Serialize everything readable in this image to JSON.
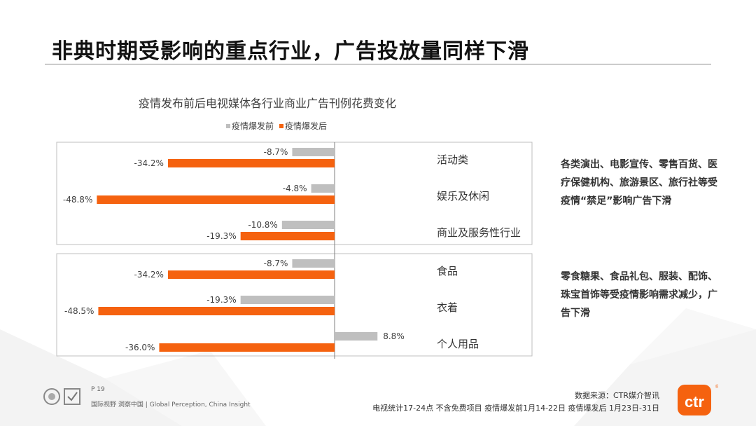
{
  "page_title": "非典时期受影响的重点行业，广告投放量同样下滑",
  "legend": {
    "before_label": "疫情爆发前",
    "after_label": "疫情爆发后"
  },
  "colors": {
    "before": "#bfbfbf",
    "after": "#f5620f",
    "accent": "#f5620f"
  },
  "chart_data": {
    "type": "bar",
    "orientation": "horizontal",
    "title": "疫情发布前后电视媒体各行业商业广告刊例花费变化",
    "categories": [
      "活动类",
      "娱乐及休闲",
      "商业及服务性行业",
      "食品",
      "衣着",
      "个人用品"
    ],
    "groups": [
      [
        "活动类",
        "娱乐及休闲",
        "商业及服务性行业"
      ],
      [
        "食品",
        "衣着",
        "个人用品"
      ]
    ],
    "series": [
      {
        "name": "疫情爆发前",
        "values": [
          -8.7,
          -4.8,
          -10.8,
          -8.7,
          -19.3,
          8.8
        ],
        "labels": [
          "-8.7%",
          "-4.8%",
          "-10.8%",
          "-8.7%",
          "-19.3%",
          "8.8%"
        ]
      },
      {
        "name": "疫情爆发后",
        "values": [
          -34.2,
          -48.8,
          -19.3,
          -34.2,
          -48.5,
          -36.0
        ],
        "labels": [
          "-34.2%",
          "-48.8%",
          "-19.3%",
          "-34.2%",
          "-48.5%",
          "-36.0%"
        ]
      }
    ],
    "value_unit": "%",
    "legend_position": "top",
    "grid": false
  },
  "notes": [
    "各类演出、电影宣传、零售百货、医疗保健机构、旅游景区、旅行社等受疫情“禁足”影响广告下滑",
    "零食糖果、食品礼包、服装、配饰、珠宝首饰等受疫情影响需求减少，广告下滑"
  ],
  "footer": {
    "page_number": "P 19",
    "tagline": "国际视野  洞察中国 |  Global Perception, China Insight",
    "source_line_1": "数据来源：CTR媒介智讯",
    "source_line_2": "电视统计17-24点 不含免费项目 疫情爆发前1月14-22日 疫情爆发后 1月23日-31日",
    "logo_text": "ctr"
  }
}
